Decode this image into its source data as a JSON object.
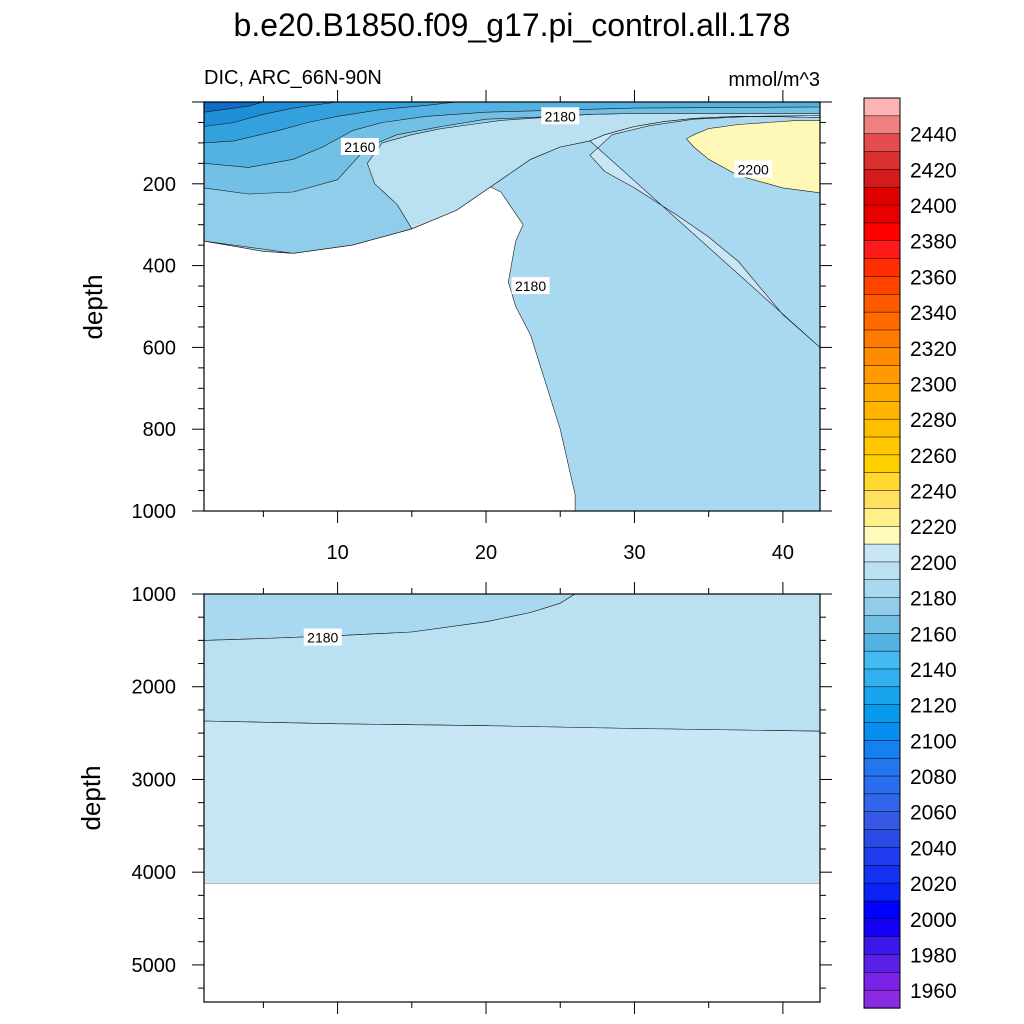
{
  "figure": {
    "title": "b.e20.B1850.f09_g17.pi_control.all.178",
    "left_subtitle": "DIC, ARC_66N-90N",
    "right_subtitle": "mmol/m^3"
  },
  "chart_data": [
    {
      "type": "contour",
      "panel": "upper",
      "variable": "DIC",
      "region": "ARC_66N-90N",
      "units": "mmol/m^3",
      "xlabel": "",
      "ylabel": "depth",
      "xlim": [
        1,
        42.5
      ],
      "ylim": [
        0,
        1000
      ],
      "y_reversed": true,
      "xticks": [
        10,
        20,
        30,
        40
      ],
      "yticks": [
        200,
        400,
        600,
        800,
        1000
      ],
      "contour_labels": [
        {
          "text": "2160",
          "x": 11.5,
          "y": 110
        },
        {
          "text": "2180",
          "x": 25,
          "y": 35
        },
        {
          "text": "2180",
          "x": 23,
          "y": 450
        },
        {
          "text": "2200",
          "x": 38,
          "y": 165
        }
      ],
      "regions": [
        {
          "level": "2170-2175",
          "color": "#a9d9f0",
          "outline": [
            [
              1,
              340
            ],
            [
              5,
              365
            ],
            [
              7,
              370
            ],
            [
              11,
              350
            ],
            [
              15,
              310
            ],
            [
              18,
              265
            ],
            [
              21,
              190
            ],
            [
              23,
              140
            ],
            [
              25,
              110
            ],
            [
              27,
              95
            ],
            [
              28,
              80
            ],
            [
              30,
              60
            ],
            [
              32,
              48
            ],
            [
              34,
              40
            ],
            [
              37,
              35
            ],
            [
              40,
              36
            ],
            [
              42.5,
              38
            ],
            [
              42.5,
              1000
            ],
            [
              26,
              1000
            ],
            [
              26,
              960
            ],
            [
              25,
              800
            ],
            [
              23,
              570
            ],
            [
              22,
              500
            ],
            [
              21.5,
              440
            ],
            [
              22,
              340
            ],
            [
              22.5,
              300
            ],
            [
              21,
              220
            ],
            [
              17,
              150
            ],
            [
              15,
              115
            ],
            [
              17,
              70
            ],
            [
              19,
              38
            ],
            [
              24,
              25
            ],
            [
              25.5,
              20
            ],
            [
              34,
              15
            ],
            [
              42.5,
              15
            ],
            [
              42.5,
              0
            ],
            [
              1,
              0
            ]
          ]
        },
        {
          "level": "2175-2180",
          "color": "#bae1f2",
          "outline": [
            [
              1,
              340
            ],
            [
              5,
              365
            ],
            [
              7,
              370
            ],
            [
              11,
              350
            ],
            [
              15,
              310
            ],
            [
              18,
              265
            ],
            [
              21,
              190
            ],
            [
              23,
              140
            ],
            [
              25,
              110
            ],
            [
              27,
              95
            ],
            [
              28,
              80
            ],
            [
              30,
              60
            ],
            [
              32,
              48
            ],
            [
              34,
              40
            ],
            [
              37,
              35
            ],
            [
              40,
              36
            ],
            [
              42.5,
              38
            ],
            [
              42.5,
              0
            ],
            [
              1,
              0
            ]
          ]
        },
        {
          "level": "2180-2190",
          "color": "#c8e6f6",
          "outline": [
            [
              42.5,
              600
            ],
            [
              40,
              520
            ],
            [
              37,
              390
            ],
            [
              35,
              330
            ],
            [
              33,
              280
            ],
            [
              30,
              210
            ],
            [
              28,
              170
            ],
            [
              27,
              130
            ],
            [
              28.5,
              80
            ],
            [
              31,
              58
            ],
            [
              34,
              42
            ],
            [
              38,
              35
            ],
            [
              42.5,
              33
            ],
            [
              42.5,
              38
            ],
            [
              40,
              36
            ],
            [
              37,
              35
            ],
            [
              34,
              40
            ],
            [
              32,
              48
            ],
            [
              30,
              60
            ],
            [
              28,
              80
            ],
            [
              27,
              95
            ]
          ]
        },
        {
          "level": "2200-2210",
          "color": "#fff9b8",
          "outline": [
            [
              34,
              80
            ],
            [
              35,
              65
            ],
            [
              37,
              55
            ],
            [
              39,
              50
            ],
            [
              41,
              45
            ],
            [
              42.5,
              45
            ],
            [
              42.5,
              222
            ],
            [
              40,
              210
            ],
            [
              37,
              180
            ],
            [
              35,
              140
            ],
            [
              34,
              110
            ],
            [
              33.5,
              90
            ]
          ]
        },
        {
          "level": "2160-2170",
          "color": "#90cdea",
          "outline": [
            [
              1,
              340
            ],
            [
              5,
              360
            ],
            [
              7,
              370
            ],
            [
              11,
              350
            ],
            [
              15,
              310
            ],
            [
              14,
              250
            ],
            [
              12.5,
              200
            ],
            [
              12,
              150
            ],
            [
              13,
              100
            ],
            [
              15,
              80
            ],
            [
              17,
              65
            ],
            [
              19,
              55
            ],
            [
              21,
              45
            ],
            [
              25,
              35
            ],
            [
              27,
              30
            ],
            [
              30,
              28
            ],
            [
              42.5,
              28
            ],
            [
              42.5,
              0
            ],
            [
              1,
              0
            ]
          ]
        },
        {
          "level": "2150-2160",
          "color": "#73c0e6",
          "outline": [
            [
              1,
              210
            ],
            [
              4,
              225
            ],
            [
              7,
              220
            ],
            [
              10,
              190
            ],
            [
              11,
              150
            ],
            [
              12,
              110
            ],
            [
              14,
              80
            ],
            [
              17,
              60
            ],
            [
              20,
              42
            ],
            [
              25,
              35
            ],
            [
              27,
              30
            ],
            [
              30,
              28
            ],
            [
              42.5,
              28
            ],
            [
              42.5,
              0
            ],
            [
              1,
              0
            ]
          ]
        },
        {
          "level": "2140-2150",
          "color": "#54b2e2",
          "outline": [
            [
              1,
              150
            ],
            [
              4,
              160
            ],
            [
              7,
              140
            ],
            [
              9,
              110
            ],
            [
              11,
              70
            ],
            [
              13,
              50
            ],
            [
              16,
              35
            ],
            [
              20,
              25
            ],
            [
              30,
              15
            ],
            [
              42.5,
              12
            ],
            [
              42.5,
              0
            ],
            [
              1,
              0
            ]
          ]
        },
        {
          "level": "2130-2140",
          "color": "#33a1dd",
          "outline": [
            [
              1,
              100
            ],
            [
              3,
              95
            ],
            [
              6,
              70
            ],
            [
              8,
              50
            ],
            [
              10,
              35
            ],
            [
              13,
              18
            ],
            [
              16,
              8
            ],
            [
              18,
              0
            ],
            [
              1,
              0
            ]
          ]
        },
        {
          "level": "2120-2130",
          "color": "#1e8fd6",
          "outline": [
            [
              1,
              60
            ],
            [
              3,
              50
            ],
            [
              5,
              30
            ],
            [
              7,
              15
            ],
            [
              9,
              5
            ],
            [
              10,
              0
            ],
            [
              1,
              0
            ]
          ]
        },
        {
          "level": "2100-2120",
          "color": "#0f6cc8",
          "outline": [
            [
              1,
              25
            ],
            [
              2,
              20
            ],
            [
              4,
              10
            ],
            [
              5,
              0
            ],
            [
              1,
              0
            ]
          ]
        }
      ]
    },
    {
      "type": "contour",
      "panel": "lower",
      "variable": "DIC",
      "region": "ARC_66N-90N",
      "units": "mmol/m^3",
      "xlabel": "",
      "ylabel": "depth",
      "xlim": [
        1,
        42.5
      ],
      "ylim": [
        1000,
        5400
      ],
      "y_reversed": true,
      "yticks": [
        1000,
        2000,
        3000,
        4000,
        5000
      ],
      "ocean_floor": 4120,
      "contour_labels": [
        {
          "text": "2180",
          "x": 9,
          "y": 1470
        }
      ],
      "regions": [
        {
          "level": "2170-2180",
          "color": "#a9d9f0",
          "outline": [
            [
              1,
              1000
            ],
            [
              26,
              1000
            ],
            [
              25,
              1100
            ],
            [
              23,
              1200
            ],
            [
              20,
              1300
            ],
            [
              15,
              1410
            ],
            [
              10,
              1450
            ],
            [
              5,
              1480
            ],
            [
              1,
              1500
            ]
          ]
        },
        {
          "level": "2180-2190",
          "color": "#bae1f2",
          "outline": [
            [
              1,
              1500
            ],
            [
              5,
              1480
            ],
            [
              10,
              1450
            ],
            [
              15,
              1410
            ],
            [
              20,
              1300
            ],
            [
              23,
              1200
            ],
            [
              25,
              1100
            ],
            [
              26,
              1000
            ],
            [
              42.5,
              1000
            ],
            [
              42.5,
              2480
            ],
            [
              30,
              2450
            ],
            [
              20,
              2420
            ],
            [
              10,
              2400
            ],
            [
              1,
              2370
            ]
          ]
        },
        {
          "level": "2190-2200",
          "color": "#c8e6f6",
          "outline": [
            [
              1,
              2370
            ],
            [
              10,
              2400
            ],
            [
              20,
              2420
            ],
            [
              30,
              2450
            ],
            [
              42.5,
              2480
            ],
            [
              42.5,
              4120
            ],
            [
              1,
              4120
            ]
          ]
        }
      ]
    }
  ],
  "colorbar": {
    "labels": [
      "2440",
      "2420",
      "2400",
      "2380",
      "2360",
      "2340",
      "2320",
      "2300",
      "2280",
      "2260",
      "2240",
      "2220",
      "2200",
      "2180",
      "2160",
      "2140",
      "2120",
      "2100",
      "2080",
      "2060",
      "2040",
      "2020",
      "2000",
      "1980",
      "1960"
    ],
    "colors": [
      "#fbb3b3",
      "#f08080",
      "#e34d4d",
      "#d93030",
      "#d51a1a",
      "#e00000",
      "#e80000",
      "#ff0000",
      "#ff1a1a",
      "#ff2d00",
      "#ff4400",
      "#ff5a00",
      "#ff6a00",
      "#ff7a00",
      "#ff8c00",
      "#ff9a00",
      "#ffaa00",
      "#ffb400",
      "#ffbe00",
      "#ffc800",
      "#ffd000",
      "#ffd830",
      "#ffe060",
      "#fff08a",
      "#fffbbb",
      "#c8e6f6",
      "#bae1f2",
      "#a9d9f0",
      "#90cdea",
      "#73c0e6",
      "#54b2e2",
      "#44bbf0",
      "#30b0ef",
      "#1aa4ee",
      "#0799ec",
      "#0a8df0",
      "#1580f0",
      "#2277ee",
      "#2a6eef",
      "#3166ea",
      "#3558e5",
      "#2a4ae8",
      "#1f3cee",
      "#1430f2",
      "#0a23f5",
      "#0000ff",
      "#1400f5",
      "#3a18ea",
      "#5a20e6",
      "#7a22e6",
      "#8a2be2"
    ]
  }
}
